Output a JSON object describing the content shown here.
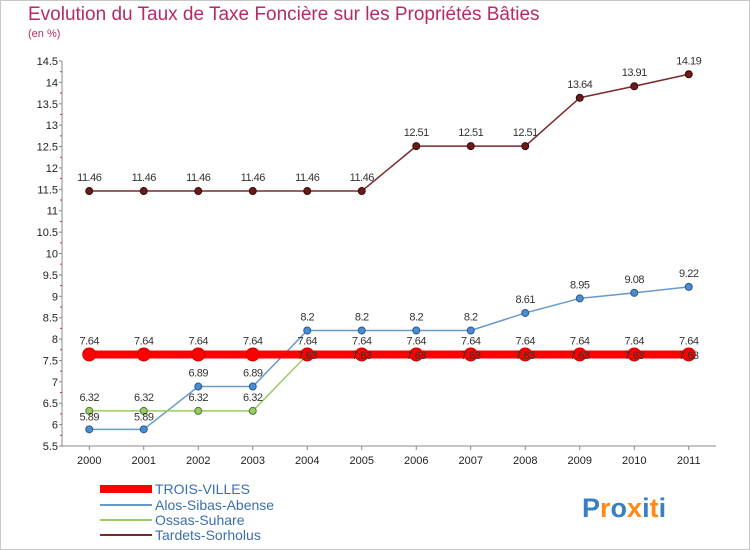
{
  "chart_data": {
    "type": "line",
    "title": "Evolution du Taux de Taxe Foncière sur les Propriétés Bâties",
    "unit_label": "(en %)",
    "xlabel": "",
    "ylabel": "",
    "x": [
      "2000",
      "2001",
      "2002",
      "2003",
      "2004",
      "2005",
      "2006",
      "2007",
      "2008",
      "2009",
      "2010",
      "2011"
    ],
    "ylim": [
      5.5,
      14.5
    ],
    "yticks": [
      5.5,
      6,
      6.5,
      7,
      7.5,
      8,
      8.5,
      9,
      9.5,
      10,
      10.5,
      11,
      11.5,
      12,
      12.5,
      13,
      13.5,
      14,
      14.5
    ],
    "ytick_labels": [
      "5.5",
      "6",
      "6.5",
      "7",
      "7.5",
      "8",
      "8.5",
      "9",
      "9.5",
      "10",
      "10.5",
      "11",
      "11.5",
      "12",
      "12.5",
      "13",
      "13.5",
      "14",
      "14.5"
    ],
    "grid": false,
    "legend_position": "bottom-left",
    "series": [
      {
        "name": "TROIS-VILLES",
        "color": "#ff0000",
        "values": [
          7.64,
          7.64,
          7.64,
          7.64,
          7.64,
          7.64,
          7.64,
          7.64,
          7.64,
          7.64,
          7.64,
          7.64
        ],
        "labels": [
          "7.64",
          "7.64",
          "7.64",
          "7.64",
          "7.64",
          "7.64",
          "7.64",
          "7.64",
          "7.64",
          "7.64",
          "7.64",
          "7.64"
        ]
      },
      {
        "name": "Alos-Sibas-Abense",
        "color": "#6699cc",
        "values": [
          5.89,
          5.89,
          6.89,
          6.89,
          8.2,
          8.2,
          8.2,
          8.2,
          8.61,
          8.95,
          9.08,
          9.22
        ],
        "labels": [
          "5.89",
          "5.89",
          "6.89",
          "6.89",
          "8.2",
          "8.2",
          "8.2",
          "8.2",
          "8.61",
          "8.95",
          "9.08",
          "9.22"
        ]
      },
      {
        "name": "Ossas-Suhare",
        "color": "#99cc66",
        "values": [
          6.32,
          6.32,
          6.32,
          6.32,
          7.63,
          7.63,
          7.63,
          7.63,
          7.63,
          7.63,
          7.63,
          7.63
        ],
        "labels": [
          "6.32",
          "6.32",
          "6.32",
          "6.32",
          "7.63",
          "7.63",
          "7.63",
          "7.63",
          "7.63",
          "7.63",
          "7.63",
          "7.63"
        ]
      },
      {
        "name": "Tardets-Sorholus",
        "color": "#7a2a2a",
        "values": [
          11.46,
          11.46,
          11.46,
          11.46,
          11.46,
          11.46,
          12.51,
          12.51,
          12.51,
          13.64,
          13.91,
          14.19
        ],
        "labels": [
          "11.46",
          "11.46",
          "11.46",
          "11.46",
          "11.46",
          "11.46",
          "12.51",
          "12.51",
          "12.51",
          "13.64",
          "13.91",
          "14.19"
        ]
      }
    ]
  },
  "logo": {
    "text": "Proxiti"
  }
}
